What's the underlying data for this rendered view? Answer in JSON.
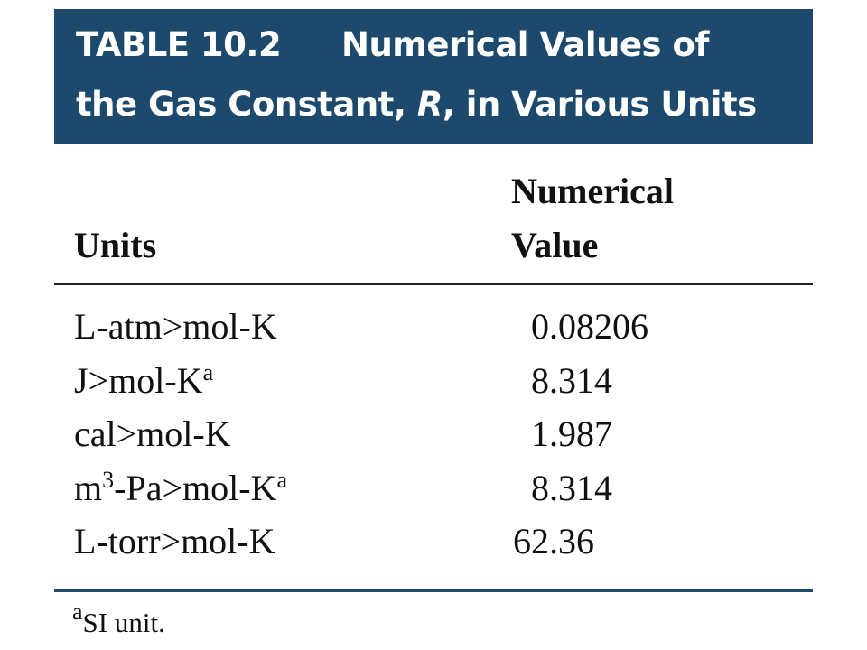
{
  "header": {
    "label": "TABLE 10.2",
    "title_parts": [
      "Numerical Values of",
      "the Gas Constant, ",
      "R",
      ", in Various Units"
    ]
  },
  "table": {
    "columns": [
      "Units",
      "Numerical",
      "Value"
    ],
    "rows": [
      {
        "unit": [
          {
            "t": "L-atm>mol-K"
          }
        ],
        "value": 0.08206
      },
      {
        "unit": [
          {
            "t": "J>mol-K",
            "sup": "a"
          }
        ],
        "value": 8.314
      },
      {
        "unit": [
          {
            "t": "cal>mol-K"
          }
        ],
        "value": 1.987
      },
      {
        "unit": [
          {
            "t": "m",
            "sup": 3
          },
          {
            "t": "-Pa>mol-K",
            "sup": "a"
          }
        ],
        "value": 8.314
      },
      {
        "unit": [
          {
            "t": "L-torr>mol-K"
          }
        ],
        "value": 62.36
      }
    ]
  },
  "footnote": {
    "mark": "a",
    "text": "SI unit."
  }
}
